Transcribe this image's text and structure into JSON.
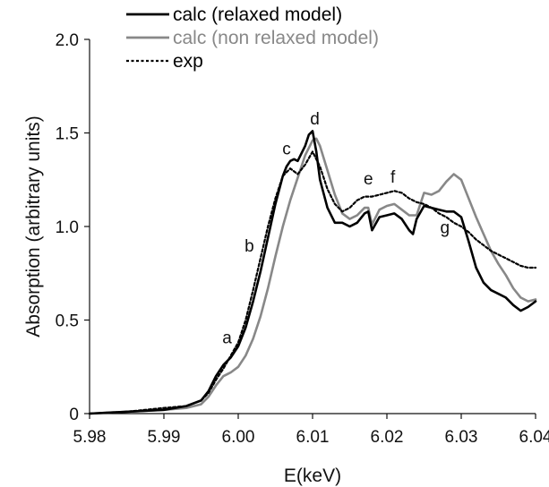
{
  "chart_data": {
    "type": "line",
    "title": "",
    "xlabel": "E(keV)",
    "ylabel": "Absorption (arbitrary units)",
    "xlim": [
      5.98,
      6.04
    ],
    "ylim": [
      0,
      2.0
    ],
    "xticks": [
      5.98,
      5.99,
      6.0,
      6.01,
      6.02,
      6.03,
      6.04
    ],
    "xtick_labels": [
      "5.98",
      "5.99",
      "6.00",
      "6.01",
      "6.02",
      "6.03",
      "6.04"
    ],
    "yticks": [
      0,
      0.5,
      1.0,
      1.5,
      2.0
    ],
    "ytick_labels": [
      "0",
      "0.5",
      "1.0",
      "1.5",
      "2.0"
    ],
    "grid": false,
    "legend_position": "top",
    "series": [
      {
        "name": "calc (relaxed model)",
        "color": "#000000",
        "style": "solid",
        "x": [
          5.98,
          5.985,
          5.99,
          5.993,
          5.995,
          5.996,
          5.997,
          5.998,
          5.999,
          6.0,
          6.001,
          6.002,
          6.003,
          6.004,
          6.005,
          6.006,
          6.0065,
          6.007,
          6.0075,
          6.008,
          6.009,
          6.0095,
          6.01,
          6.0105,
          6.011,
          6.012,
          6.013,
          6.014,
          6.015,
          6.016,
          6.017,
          6.0175,
          6.018,
          6.019,
          6.02,
          6.021,
          6.022,
          6.023,
          6.0235,
          6.024,
          6.025,
          6.026,
          6.027,
          6.028,
          6.029,
          6.03,
          6.031,
          6.032,
          6.033,
          6.034,
          6.035,
          6.036,
          6.037,
          6.038,
          6.039,
          6.04
        ],
        "y": [
          0.0,
          0.01,
          0.02,
          0.04,
          0.07,
          0.12,
          0.2,
          0.26,
          0.3,
          0.36,
          0.46,
          0.6,
          0.76,
          0.94,
          1.12,
          1.27,
          1.32,
          1.35,
          1.36,
          1.35,
          1.43,
          1.49,
          1.51,
          1.4,
          1.25,
          1.1,
          1.02,
          1.02,
          1.0,
          1.02,
          1.07,
          1.08,
          0.98,
          1.05,
          1.06,
          1.07,
          1.04,
          0.98,
          0.96,
          1.04,
          1.11,
          1.1,
          1.09,
          1.08,
          1.08,
          1.05,
          0.92,
          0.78,
          0.7,
          0.66,
          0.64,
          0.62,
          0.58,
          0.55,
          0.57,
          0.6
        ]
      },
      {
        "name": "calc (non relaxed model)",
        "color": "#888888",
        "style": "solid",
        "x": [
          5.98,
          5.985,
          5.99,
          5.993,
          5.995,
          5.996,
          5.997,
          5.998,
          5.999,
          6.0,
          6.001,
          6.002,
          6.003,
          6.004,
          6.005,
          6.006,
          6.007,
          6.008,
          6.009,
          6.01,
          6.0105,
          6.011,
          6.012,
          6.013,
          6.014,
          6.015,
          6.016,
          6.017,
          6.0175,
          6.018,
          6.019,
          6.02,
          6.021,
          6.022,
          6.023,
          6.024,
          6.025,
          6.026,
          6.027,
          6.028,
          6.029,
          6.03,
          6.031,
          6.032,
          6.033,
          6.034,
          6.035,
          6.036,
          6.037,
          6.038,
          6.039,
          6.04
        ],
        "y": [
          0.0,
          0.01,
          0.02,
          0.03,
          0.05,
          0.09,
          0.15,
          0.2,
          0.22,
          0.25,
          0.31,
          0.4,
          0.52,
          0.67,
          0.84,
          1.0,
          1.14,
          1.26,
          1.38,
          1.46,
          1.47,
          1.43,
          1.3,
          1.17,
          1.07,
          1.04,
          1.06,
          1.1,
          1.1,
          1.01,
          1.09,
          1.11,
          1.12,
          1.09,
          1.06,
          1.06,
          1.18,
          1.17,
          1.19,
          1.24,
          1.28,
          1.25,
          1.15,
          1.05,
          0.96,
          0.87,
          0.8,
          0.74,
          0.67,
          0.62,
          0.6,
          0.61
        ]
      },
      {
        "name": "exp",
        "color": "#000000",
        "style": "dotted",
        "x": [
          5.98,
          5.985,
          5.99,
          5.993,
          5.995,
          5.996,
          5.997,
          5.998,
          5.999,
          6.0,
          6.001,
          6.002,
          6.003,
          6.004,
          6.005,
          6.006,
          6.007,
          6.008,
          6.009,
          6.01,
          6.011,
          6.012,
          6.013,
          6.014,
          6.015,
          6.016,
          6.017,
          6.018,
          6.019,
          6.02,
          6.021,
          6.022,
          6.023,
          6.024,
          6.025,
          6.026,
          6.027,
          6.028,
          6.029,
          6.03,
          6.031,
          6.032,
          6.033,
          6.034,
          6.035,
          6.036,
          6.037,
          6.038,
          6.039,
          6.04
        ],
        "y": [
          0.0,
          0.01,
          0.03,
          0.04,
          0.07,
          0.11,
          0.18,
          0.24,
          0.31,
          0.38,
          0.5,
          0.66,
          0.83,
          1.0,
          1.15,
          1.27,
          1.31,
          1.28,
          1.33,
          1.4,
          1.32,
          1.2,
          1.12,
          1.08,
          1.1,
          1.14,
          1.16,
          1.16,
          1.17,
          1.18,
          1.19,
          1.18,
          1.15,
          1.13,
          1.12,
          1.1,
          1.07,
          1.05,
          1.02,
          1.0,
          0.97,
          0.93,
          0.9,
          0.87,
          0.85,
          0.83,
          0.81,
          0.79,
          0.78,
          0.78
        ]
      }
    ],
    "annotations": [
      {
        "text": "a",
        "x": 5.9985,
        "y": 0.375
      },
      {
        "text": "b",
        "x": 6.0015,
        "y": 0.865
      },
      {
        "text": "c",
        "x": 6.0065,
        "y": 1.385
      },
      {
        "text": "d",
        "x": 6.0103,
        "y": 1.545
      },
      {
        "text": "e",
        "x": 6.0175,
        "y": 1.225
      },
      {
        "text": "f",
        "x": 6.0208,
        "y": 1.235
      },
      {
        "text": "g",
        "x": 6.0278,
        "y": 0.965
      }
    ]
  }
}
